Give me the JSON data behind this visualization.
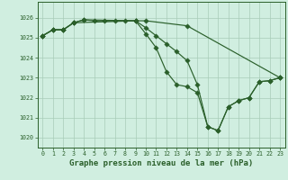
{
  "background_color": "#d0eee0",
  "grid_color": "#a8ccb8",
  "line_color": "#2a5f2a",
  "xlabel": "Graphe pression niveau de la mer (hPa)",
  "xlabel_fontsize": 6.5,
  "ylabel_ticks": [
    1020,
    1021,
    1022,
    1023,
    1024,
    1025,
    1026
  ],
  "xtick_labels": [
    "0",
    "1",
    "2",
    "3",
    "4",
    "5",
    "6",
    "7",
    "8",
    "9",
    "10",
    "11",
    "12",
    "13",
    "14",
    "15",
    "16",
    "17",
    "18",
    "19",
    "20",
    "21",
    "22",
    "23"
  ],
  "xticks": [
    0,
    1,
    2,
    3,
    4,
    5,
    6,
    7,
    8,
    9,
    10,
    11,
    12,
    13,
    14,
    15,
    16,
    17,
    18,
    19,
    20,
    21,
    22,
    23
  ],
  "ylim": [
    1019.5,
    1026.8
  ],
  "xlim": [
    -0.5,
    23.5
  ],
  "line1_x": [
    0,
    1,
    2,
    3,
    4,
    5,
    6,
    7,
    8,
    9,
    10,
    14,
    23
  ],
  "line1_y": [
    1025.1,
    1025.4,
    1025.4,
    1025.75,
    1025.9,
    1025.85,
    1025.85,
    1025.85,
    1025.85,
    1025.85,
    1025.85,
    1025.6,
    1023.0
  ],
  "line2_x": [
    0,
    1,
    2,
    3,
    9,
    10,
    11,
    12,
    13,
    14,
    15,
    16,
    17,
    18,
    19,
    20,
    21,
    22,
    23
  ],
  "line2_y": [
    1025.1,
    1025.4,
    1025.4,
    1025.75,
    1025.85,
    1025.2,
    1024.5,
    1023.3,
    1022.65,
    1022.55,
    1022.25,
    1020.55,
    1020.35,
    1021.55,
    1021.85,
    1022.0,
    1022.8,
    1022.85,
    1023.0
  ],
  "line3_x": [
    0,
    1,
    2,
    3,
    4,
    9,
    10,
    11,
    12,
    13,
    14,
    15,
    16,
    17,
    18,
    19,
    20,
    21,
    22,
    23
  ],
  "line3_y": [
    1025.1,
    1025.4,
    1025.4,
    1025.75,
    1025.9,
    1025.85,
    1025.5,
    1025.1,
    1024.7,
    1024.3,
    1023.85,
    1022.65,
    1020.55,
    1020.35,
    1021.55,
    1021.85,
    1022.0,
    1022.8,
    1022.85,
    1023.0
  ]
}
